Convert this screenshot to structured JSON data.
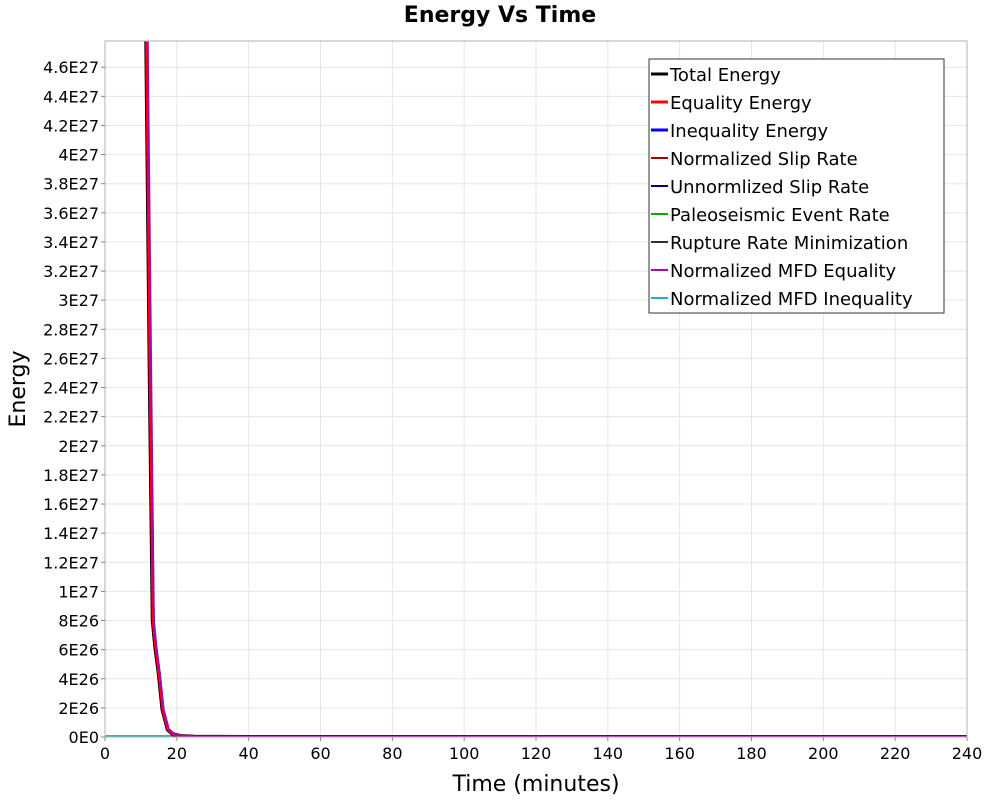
{
  "chart_data": {
    "type": "line",
    "title": "Energy Vs Time",
    "xlabel": "Time (minutes)",
    "ylabel": "Energy",
    "xlim": [
      0,
      240
    ],
    "ylim": [
      0,
      4.78e+27
    ],
    "x_ticks": [
      0,
      20,
      40,
      60,
      80,
      100,
      120,
      140,
      160,
      180,
      200,
      220,
      240
    ],
    "x_tick_labels": [
      "0",
      "20",
      "40",
      "60",
      "80",
      "100",
      "120",
      "140",
      "160",
      "180",
      "200",
      "220",
      "240"
    ],
    "y_ticks": [
      0,
      2e+26,
      4e+26,
      6e+26,
      8e+26,
      1e+27,
      1.2e+27,
      1.4e+27,
      1.6e+27,
      1.8e+27,
      2e+27,
      2.2e+27,
      2.4e+27,
      2.6e+27,
      2.8e+27,
      3e+27,
      3.2e+27,
      3.4e+27,
      3.6e+27,
      3.8e+27,
      4e+27,
      4.2e+27,
      4.4e+27,
      4.6e+27
    ],
    "y_tick_labels": [
      "0E0",
      "2E26",
      "4E26",
      "6E26",
      "8E26",
      "1E27",
      "1.2E27",
      "1.4E27",
      "1.6E27",
      "1.8E27",
      "2E27",
      "2.2E27",
      "2.4E27",
      "2.6E27",
      "2.8E27",
      "3E27",
      "3.2E27",
      "3.4E27",
      "3.6E27",
      "3.8E27",
      "4E27",
      "4.2E27",
      "4.4E27",
      "4.6E27"
    ],
    "grid": true,
    "legend_position": "top-right",
    "series": [
      {
        "name": "Total Energy",
        "color": "#000000",
        "width": 4,
        "x": [
          11.5,
          12.5,
          13.3,
          14,
          15,
          16,
          17.5,
          19,
          21,
          25,
          40,
          240
        ],
        "y": [
          4.78e+27,
          2.4e+27,
          8e+26,
          6.2e+26,
          4.3e+26,
          1.9e+26,
          5e+25,
          1.8e+25,
          6e+24,
          1.5e+24,
          3e+23,
          1e+23
        ]
      },
      {
        "name": "Equality Energy",
        "color": "#ff0000",
        "width": 3,
        "x": [
          11.6,
          12.6,
          13.4,
          14.1,
          15.1,
          16.1,
          17.6,
          19.1,
          21,
          25,
          40,
          240
        ],
        "y": [
          4.78e+27,
          2.4e+27,
          8e+26,
          6.2e+26,
          4.3e+26,
          1.9e+26,
          5e+25,
          1.8e+25,
          6e+24,
          1.5e+24,
          3e+23,
          1e+23
        ]
      },
      {
        "name": "Inequality Energy",
        "color": "#0000ff",
        "width": 3,
        "x": [
          0,
          240
        ],
        "y": [
          0,
          0
        ]
      },
      {
        "name": "Normalized Slip Rate",
        "color": "#aa0000",
        "width": 2,
        "x": [
          0,
          240
        ],
        "y": [
          0,
          0
        ]
      },
      {
        "name": "Unnormlized Slip Rate",
        "color": "#000080",
        "width": 2,
        "x": [
          0,
          240
        ],
        "y": [
          0,
          0
        ]
      },
      {
        "name": "Paleoseismic Event Rate",
        "color": "#00aa00",
        "width": 2,
        "x": [
          0,
          240
        ],
        "y": [
          0,
          0
        ]
      },
      {
        "name": "Rupture Rate Minimization",
        "color": "#303030",
        "width": 2,
        "x": [
          0,
          240
        ],
        "y": [
          0,
          0
        ]
      },
      {
        "name": "Normalized MFD Equality",
        "color": "#b000b0",
        "width": 2,
        "x": [
          11.9,
          12.9,
          13.6,
          14.3,
          15.3,
          16.3,
          17.8,
          19.3,
          21.2,
          25,
          40,
          240
        ],
        "y": [
          4.78e+27,
          2.4e+27,
          8e+26,
          6.2e+26,
          4.3e+26,
          1.9e+26,
          5e+25,
          1.8e+25,
          6e+24,
          1.5e+24,
          3e+23,
          1e+23
        ]
      },
      {
        "name": "Normalized MFD Inequality",
        "color": "#20b0c8",
        "width": 2,
        "x": [
          0,
          240
        ],
        "y": [
          0,
          0
        ]
      }
    ]
  }
}
